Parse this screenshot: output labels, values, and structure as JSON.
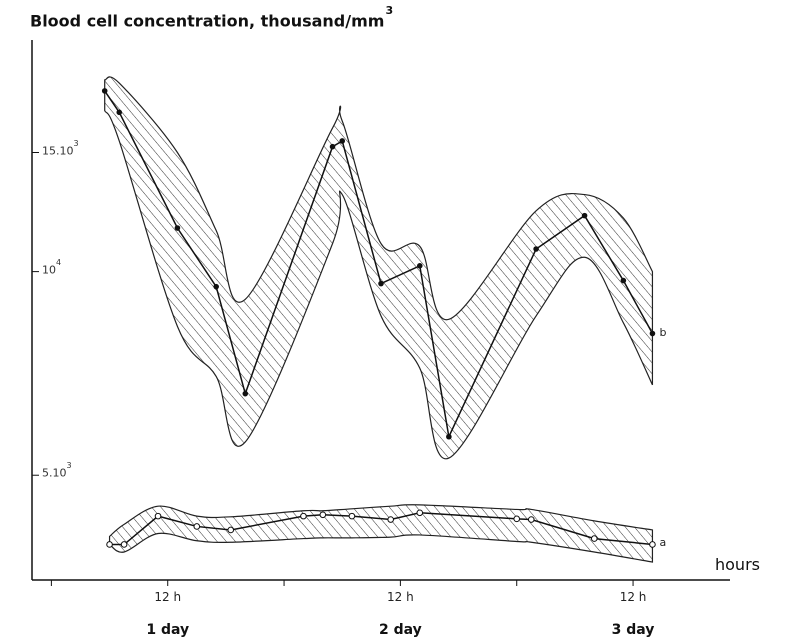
{
  "chart_data": {
    "type": "line",
    "title_main": "Blood cell concentration, thousand/mm",
    "title_sup": "3",
    "xlabel": "hours",
    "y_scale": "log",
    "ylim": [
      3500,
      22000
    ],
    "xlim": [
      -2,
      70
    ],
    "y_ticks": [
      {
        "value": 5000,
        "base": "5.10",
        "exp": "3"
      },
      {
        "value": 10000,
        "base": "10",
        "exp": "4"
      },
      {
        "value": 15000,
        "base": "15.10",
        "exp": "3"
      }
    ],
    "x_ticks": [
      {
        "value": 12,
        "label": "12 h"
      },
      {
        "value": 36,
        "label": "12 h"
      },
      {
        "value": 60,
        "label": "12 h"
      }
    ],
    "day_labels": [
      {
        "x": 12,
        "label": "1 day"
      },
      {
        "x": 36,
        "label": "2 day"
      },
      {
        "x": 60,
        "label": "3 day"
      }
    ],
    "series": [
      {
        "name": "b",
        "x": [
          5.5,
          7,
          13,
          17,
          20,
          29,
          30,
          34,
          38,
          41,
          50,
          55,
          59,
          62
        ],
        "y": [
          18500,
          17200,
          11600,
          9500,
          6600,
          15300,
          15600,
          9600,
          10200,
          5700,
          10800,
          12100,
          9700,
          8100
        ],
        "band_upper": [
          19200,
          19000,
          15000,
          11500,
          9100,
          16300,
          16700,
          11000,
          10900,
          8500,
          12300,
          13000,
          12000,
          10000
        ],
        "band_lower": [
          17300,
          15600,
          8300,
          7000,
          5600,
          11000,
          13000,
          8600,
          7200,
          5300,
          8600,
          10500,
          8400,
          6800
        ]
      },
      {
        "name": "a",
        "x": [
          6,
          7.5,
          11,
          15,
          18.5,
          26,
          28,
          31,
          35,
          38,
          48,
          49.5,
          56,
          62
        ],
        "y": [
          3950,
          3950,
          4350,
          4200,
          4150,
          4350,
          4370,
          4350,
          4300,
          4400,
          4310,
          4300,
          4030,
          3950
        ],
        "band_upper": [
          4060,
          4230,
          4500,
          4350,
          4340,
          4430,
          4430,
          4460,
          4500,
          4520,
          4450,
          4450,
          4280,
          4150
        ],
        "band_lower": [
          3950,
          3850,
          4100,
          4000,
          3980,
          4030,
          4040,
          4040,
          4050,
          4080,
          3990,
          3980,
          3850,
          3720
        ]
      }
    ],
    "grid": false,
    "legend": "none"
  }
}
